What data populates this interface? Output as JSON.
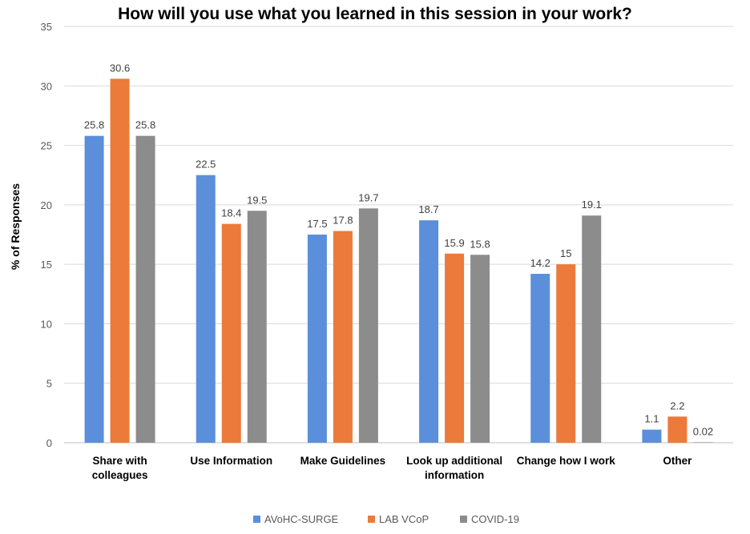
{
  "chart_data": {
    "type": "bar",
    "title": "How will you use what you learned in this session in your work?",
    "xlabel": "",
    "ylabel": "% of Responses",
    "ylim": [
      0,
      35
    ],
    "yticks": [
      "0",
      "5",
      "10",
      "15",
      "20",
      "25",
      "30",
      "35"
    ],
    "grid": true,
    "legend_position": "bottom",
    "categories": [
      [
        "Share with",
        "colleagues"
      ],
      [
        "Use Information"
      ],
      [
        "Make Guidelines"
      ],
      [
        "Look up additional",
        "information"
      ],
      [
        "Change how I work"
      ],
      [
        "Other"
      ]
    ],
    "series": [
      {
        "name": "AVoHC-SURGE",
        "color": "#5B8FDB",
        "values": [
          25.8,
          22.5,
          17.5,
          18.7,
          14.2,
          1.1
        ],
        "labels": [
          "25.8",
          "22.5",
          "17.5",
          "18.7",
          "14.2",
          "1.1"
        ]
      },
      {
        "name": "LAB VCoP",
        "color": "#EC7A3A",
        "values": [
          30.6,
          18.4,
          17.8,
          15.9,
          15,
          2.2
        ],
        "labels": [
          "30.6",
          "18.4",
          "17.8",
          "15.9",
          "15",
          "2.2"
        ]
      },
      {
        "name": "COVID-19",
        "color": "#8C8C8C",
        "values": [
          25.8,
          19.5,
          19.7,
          15.8,
          19.1,
          0.02
        ],
        "labels": [
          "25.8",
          "19.5",
          "19.7",
          "15.8",
          "19.1",
          "0.02"
        ]
      }
    ]
  }
}
